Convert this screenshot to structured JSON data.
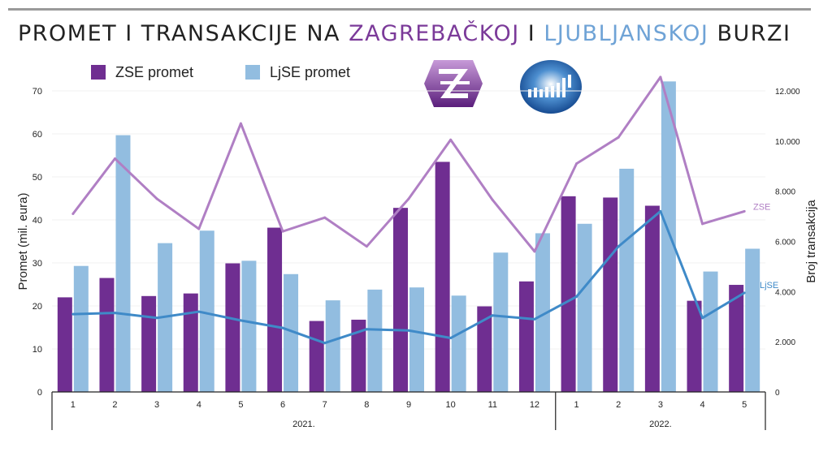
{
  "title": {
    "part1": "PROMET I TRANSAKCIJE NA ",
    "zse": "ZAGREBAČKOJ",
    "part2": " I ",
    "ljse": "LJUBLJANSKOJ",
    "part3": " BURZI"
  },
  "colors": {
    "zse_bar": "#6f2e91",
    "ljse_bar": "#92bde0",
    "zse_line": "#b07fc4",
    "ljse_line": "#3f8ac8",
    "zse_title": "#7b3a99",
    "ljse_title": "#6fa3d6"
  },
  "logos": {
    "zse": "zse-logo",
    "ljse": "ljse-logo"
  },
  "chart_data": {
    "type": "bar",
    "categories": [
      "1",
      "2",
      "3",
      "4",
      "5",
      "6",
      "7",
      "8",
      "9",
      "10",
      "11",
      "12",
      "1",
      "2",
      "3",
      "4",
      "5"
    ],
    "groups": [
      {
        "label": "2021.",
        "from": 0,
        "to": 11
      },
      {
        "label": "2022.",
        "from": 12,
        "to": 16
      }
    ],
    "series": [
      {
        "name": "ZSE promet",
        "type": "bar",
        "axis": "left",
        "values": [
          22,
          26.5,
          22.3,
          22.9,
          29.9,
          38.2,
          16.5,
          16.8,
          42.8,
          53.5,
          19.9,
          25.7,
          45.5,
          45.2,
          43.3,
          21.2,
          24.9
        ]
      },
      {
        "name": "LjSE promet",
        "type": "bar",
        "axis": "left",
        "values": [
          29.3,
          59.7,
          34.6,
          37.5,
          30.5,
          27.4,
          21.3,
          23.8,
          24.3,
          22.4,
          32.4,
          36.9,
          39.1,
          51.9,
          72.2,
          28.0,
          33.3
        ]
      },
      {
        "name": "ZSE",
        "type": "line",
        "axis": "right",
        "values": [
          7100,
          9300,
          7700,
          6500,
          10700,
          6400,
          6950,
          5800,
          7700,
          10050,
          7650,
          5600,
          9100,
          10150,
          12550,
          6700,
          7200
        ]
      },
      {
        "name": "LjSE",
        "type": "line",
        "axis": "right",
        "values": [
          3100,
          3150,
          2950,
          3200,
          2850,
          2550,
          1950,
          2500,
          2450,
          2150,
          3050,
          2900,
          3800,
          5800,
          7200,
          2950,
          3950
        ]
      }
    ],
    "ylabel": "Promet (mil. eura)",
    "ylabel_right": "Broj transakcija",
    "ylim": [
      0,
      70
    ],
    "ylim_right": [
      0,
      12000
    ],
    "yticks": [
      "0",
      "10",
      "20",
      "30",
      "40",
      "50",
      "60",
      "70"
    ],
    "yticks_right": [
      "0",
      "2.000",
      "4.000",
      "6.000",
      "8.000",
      "10.000",
      "12.000"
    ],
    "line_labels": {
      "zse": "ZSE",
      "ljse": "LjSE"
    },
    "legend_position": "top-left"
  }
}
